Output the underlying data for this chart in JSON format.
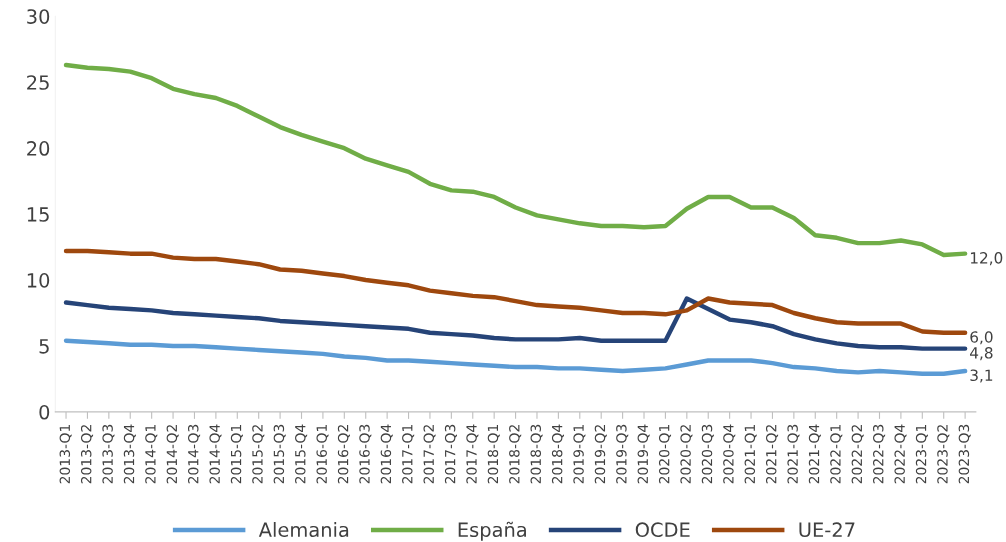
{
  "chart_data": {
    "type": "line",
    "categories": [
      "2013-Q1",
      "2013-Q2",
      "2013-Q3",
      "2013-Q4",
      "2014-Q1",
      "2014-Q2",
      "2014-Q3",
      "2014-Q4",
      "2015-Q1",
      "2015-Q2",
      "2015-Q3",
      "2015-Q4",
      "2016-Q1",
      "2016-Q2",
      "2016-Q3",
      "2016-Q4",
      "2017-Q1",
      "2017-Q2",
      "2017-Q3",
      "2017-Q4",
      "2018-Q1",
      "2018-Q2",
      "2018-Q3",
      "2018-Q4",
      "2019-Q1",
      "2019-Q2",
      "2019-Q3",
      "2019-Q4",
      "2020-Q1",
      "2020-Q2",
      "2020-Q3",
      "2020-Q4",
      "2021-Q1",
      "2021-Q2",
      "2021-Q3",
      "2021-Q4",
      "2022-Q1",
      "2022-Q2",
      "2022-Q3",
      "2022-Q4",
      "2023-Q1",
      "2023-Q2",
      "2023-Q3"
    ],
    "series": [
      {
        "name": "Alemania",
        "color": "#5b9bd5",
        "values": [
          5.4,
          5.3,
          5.2,
          5.1,
          5.1,
          5.0,
          5.0,
          4.9,
          4.8,
          4.7,
          4.6,
          4.5,
          4.4,
          4.2,
          4.1,
          3.9,
          3.9,
          3.8,
          3.7,
          3.6,
          3.5,
          3.4,
          3.4,
          3.3,
          3.3,
          3.2,
          3.1,
          3.2,
          3.3,
          3.6,
          3.9,
          3.9,
          3.9,
          3.7,
          3.4,
          3.3,
          3.1,
          3.0,
          3.1,
          3.0,
          2.9,
          2.9,
          3.1
        ],
        "value_labels": [
          null,
          null,
          null,
          null,
          null,
          null,
          null,
          null,
          null,
          null,
          null,
          null,
          null,
          null,
          null,
          null,
          null,
          null,
          null,
          null,
          null,
          null,
          null,
          null,
          null,
          null,
          null,
          null,
          null,
          null,
          null,
          null,
          null,
          null,
          null,
          null,
          null,
          null,
          null,
          null,
          null,
          null,
          "3,1"
        ]
      },
      {
        "name": "España",
        "color": "#70ad47",
        "values": [
          26.3,
          26.1,
          26.0,
          25.8,
          25.3,
          24.5,
          24.1,
          23.8,
          23.2,
          22.4,
          21.6,
          21.0,
          20.5,
          20.0,
          19.2,
          18.7,
          18.2,
          17.3,
          16.8,
          16.7,
          16.3,
          15.5,
          14.9,
          14.6,
          14.3,
          14.1,
          14.1,
          14.0,
          14.1,
          15.4,
          16.3,
          16.3,
          15.5,
          15.5,
          14.7,
          13.4,
          13.2,
          12.8,
          12.8,
          13.0,
          12.7,
          11.9,
          12.0
        ],
        "value_labels": [
          null,
          null,
          null,
          null,
          null,
          null,
          null,
          null,
          null,
          null,
          null,
          null,
          null,
          null,
          null,
          null,
          null,
          null,
          null,
          null,
          null,
          null,
          null,
          null,
          null,
          null,
          null,
          null,
          null,
          null,
          null,
          null,
          null,
          null,
          null,
          null,
          null,
          null,
          null,
          null,
          null,
          null,
          "12,0"
        ]
      },
      {
        "name": "OCDE",
        "color": "#264478",
        "values": [
          8.3,
          8.1,
          7.9,
          7.8,
          7.7,
          7.5,
          7.4,
          7.3,
          7.2,
          7.1,
          6.9,
          6.8,
          6.7,
          6.6,
          6.5,
          6.4,
          6.3,
          6.0,
          5.9,
          5.8,
          5.6,
          5.5,
          5.5,
          5.5,
          5.6,
          5.4,
          5.4,
          5.4,
          5.4,
          8.6,
          7.8,
          7.0,
          6.8,
          6.5,
          5.9,
          5.5,
          5.2,
          5.0,
          4.9,
          4.9,
          4.8,
          4.8,
          4.8
        ],
        "value_labels": [
          null,
          null,
          null,
          null,
          null,
          null,
          null,
          null,
          null,
          null,
          null,
          null,
          null,
          null,
          null,
          null,
          null,
          null,
          null,
          null,
          null,
          null,
          null,
          null,
          null,
          null,
          null,
          null,
          null,
          null,
          null,
          null,
          null,
          null,
          null,
          null,
          null,
          null,
          null,
          null,
          null,
          null,
          "4,8"
        ]
      },
      {
        "name": "UE-27",
        "color": "#9e480e",
        "values": [
          12.2,
          12.2,
          12.1,
          12.0,
          12.0,
          11.7,
          11.6,
          11.6,
          11.4,
          11.2,
          10.8,
          10.7,
          10.5,
          10.3,
          10.0,
          9.8,
          9.6,
          9.2,
          9.0,
          8.8,
          8.7,
          8.4,
          8.1,
          8.0,
          7.9,
          7.7,
          7.5,
          7.5,
          7.4,
          7.7,
          8.6,
          8.3,
          8.2,
          8.1,
          7.5,
          7.1,
          6.8,
          6.7,
          6.7,
          6.7,
          6.1,
          6.0,
          6.0
        ],
        "value_labels": [
          null,
          null,
          null,
          null,
          null,
          null,
          null,
          null,
          null,
          null,
          null,
          null,
          null,
          null,
          null,
          null,
          null,
          null,
          null,
          null,
          null,
          null,
          null,
          null,
          null,
          null,
          null,
          null,
          null,
          null,
          null,
          null,
          null,
          null,
          null,
          null,
          null,
          null,
          null,
          null,
          null,
          null,
          "6,0"
        ]
      }
    ],
    "ylim": [
      0,
      30
    ],
    "yticks": [
      0,
      5,
      10,
      15,
      20,
      25,
      30
    ],
    "grid": false,
    "legend": "bottom",
    "marker": "none",
    "line_style": "solid"
  }
}
